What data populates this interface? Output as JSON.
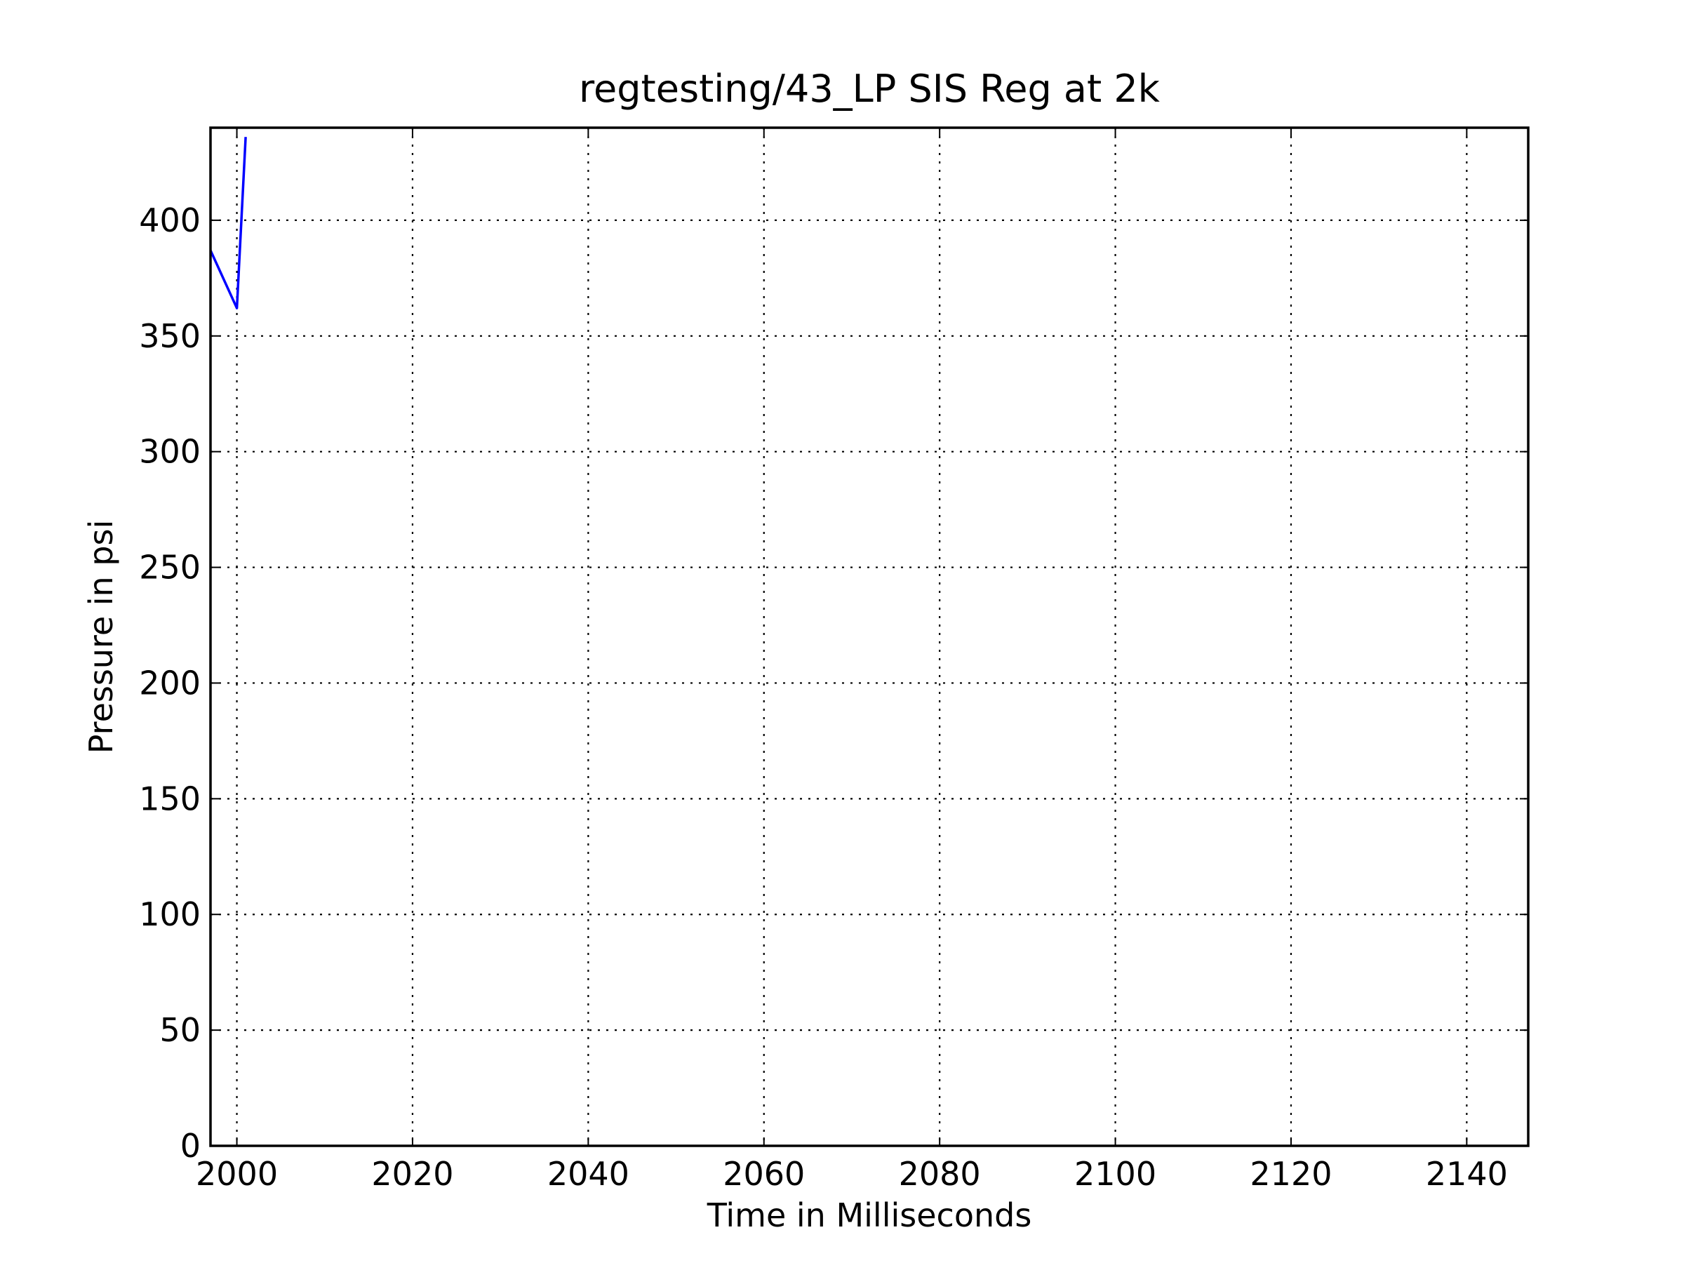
{
  "chart_data": {
    "type": "line",
    "title": "regtesting/43_LP SIS Reg at 2k",
    "xlabel": "Time in Milliseconds",
    "ylabel": "Pressure in psi",
    "xlim": [
      1997,
      2147
    ],
    "ylim": [
      0,
      440
    ],
    "xticks": [
      2000,
      2020,
      2040,
      2060,
      2080,
      2100,
      2120,
      2140
    ],
    "yticks": [
      0,
      50,
      100,
      150,
      200,
      250,
      300,
      350,
      400
    ],
    "grid": true,
    "legend": "none",
    "series": [
      {
        "color": "#0000ff",
        "x": [
          1997,
          2000,
          2001
        ],
        "y": [
          387,
          362,
          436
        ]
      }
    ]
  }
}
